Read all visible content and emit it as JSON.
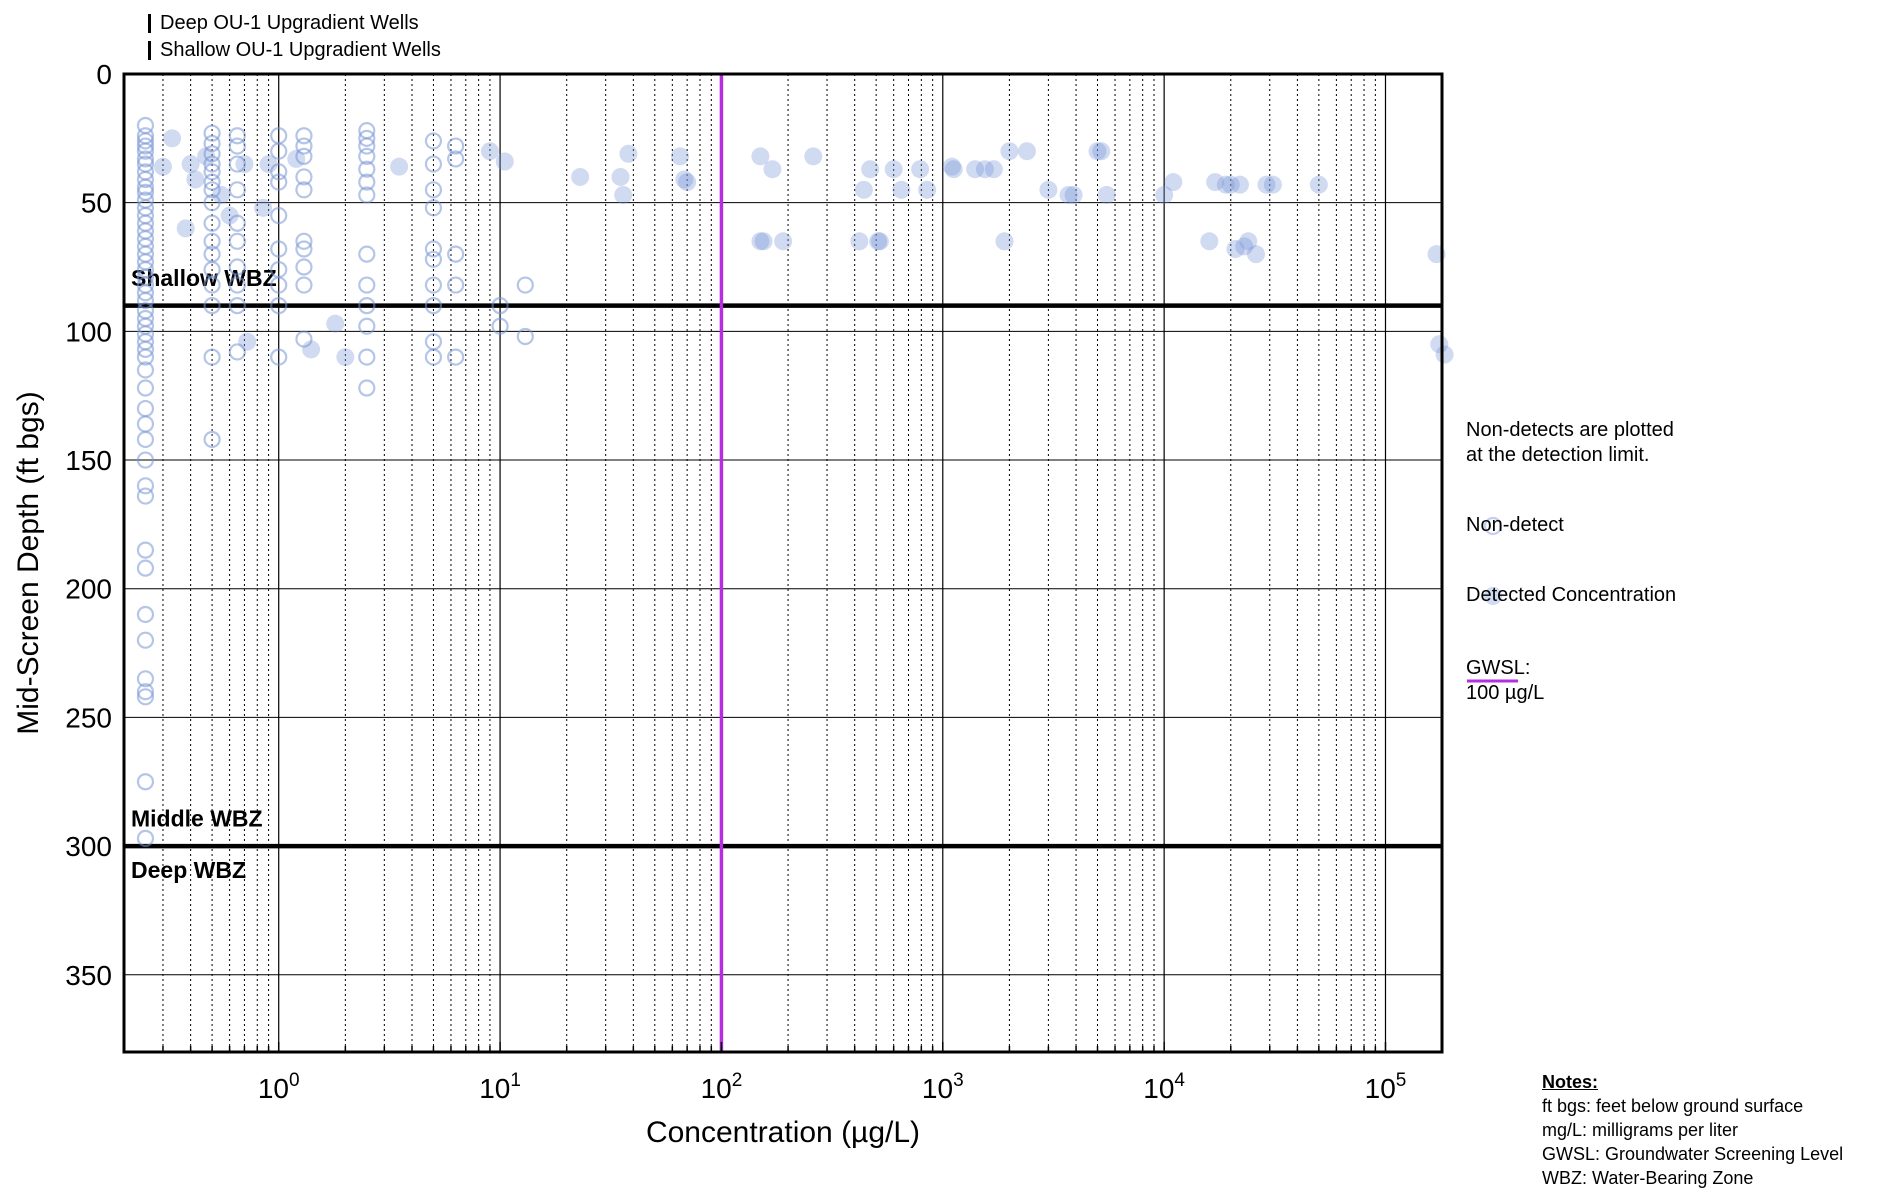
{
  "legend_top": [
    {
      "label": "Deep OU-1 Upgradient Wells"
    },
    {
      "label": "Shallow OU-1 Upgradient Wells"
    }
  ],
  "side_legend": {
    "note_line1": "Non-detects are plotted",
    "note_line2": "at the detection limit.",
    "nondetect_label": "Non-detect",
    "detected_label": "Detected Concentration",
    "gwsl_line1": "GWSL:",
    "gwsl_line2": "100 µg/L"
  },
  "notes": {
    "heading": "Notes:",
    "lines": [
      "ft bgs: feet below ground surface",
      "mg/L: milligrams per liter",
      "GWSL: Groundwater Screening Level",
      "WBZ: Water-Bearing Zone"
    ]
  },
  "colors": {
    "marker": "#7895d6",
    "gwsl": "#b52ee0",
    "grid": "#000000"
  },
  "chart_data": {
    "type": "scatter",
    "xlabel": "Concentration (µg/L)",
    "ylabel": "Mid-Screen Depth (ft bgs)",
    "xscale": "log",
    "xlim": [
      0.2,
      180000
    ],
    "ylim": [
      380,
      0
    ],
    "yticks": [
      0,
      50,
      100,
      150,
      200,
      250,
      300,
      350
    ],
    "xticks": [
      {
        "value": 1,
        "base": "10",
        "exp": "0"
      },
      {
        "value": 10,
        "base": "10",
        "exp": "1"
      },
      {
        "value": 100,
        "base": "10",
        "exp": "2"
      },
      {
        "value": 1000,
        "base": "10",
        "exp": "3"
      },
      {
        "value": 10000,
        "base": "10",
        "exp": "4"
      },
      {
        "value": 100000,
        "base": "10",
        "exp": "5"
      }
    ],
    "reference_line": {
      "x": 100,
      "label": "GWSL: 100 µg/L"
    },
    "zone_boundaries": [
      90,
      300
    ],
    "zone_labels": [
      {
        "text": "Shallow WBZ",
        "depth": 80
      },
      {
        "text": "Middle WBZ",
        "depth": 290
      },
      {
        "text": "Deep WBZ",
        "depth": 310
      }
    ],
    "series": [
      {
        "name": "Non-detect",
        "style": "open",
        "points": [
          [
            0.25,
            20
          ],
          [
            0.25,
            24
          ],
          [
            0.25,
            26
          ],
          [
            0.25,
            28
          ],
          [
            0.25,
            30
          ],
          [
            0.25,
            33
          ],
          [
            0.25,
            35
          ],
          [
            0.25,
            38
          ],
          [
            0.25,
            41
          ],
          [
            0.25,
            44
          ],
          [
            0.25,
            46
          ],
          [
            0.25,
            49
          ],
          [
            0.25,
            52
          ],
          [
            0.25,
            55
          ],
          [
            0.25,
            58
          ],
          [
            0.25,
            61
          ],
          [
            0.25,
            64
          ],
          [
            0.25,
            67
          ],
          [
            0.25,
            70
          ],
          [
            0.25,
            73
          ],
          [
            0.25,
            76
          ],
          [
            0.25,
            79
          ],
          [
            0.25,
            82
          ],
          [
            0.25,
            85
          ],
          [
            0.25,
            88
          ],
          [
            0.25,
            92
          ],
          [
            0.25,
            95
          ],
          [
            0.25,
            98
          ],
          [
            0.25,
            101
          ],
          [
            0.25,
            104
          ],
          [
            0.25,
            107
          ],
          [
            0.25,
            110
          ],
          [
            0.25,
            115
          ],
          [
            0.25,
            122
          ],
          [
            0.25,
            130
          ],
          [
            0.25,
            136
          ],
          [
            0.25,
            142
          ],
          [
            0.25,
            150
          ],
          [
            0.25,
            160
          ],
          [
            0.25,
            164
          ],
          [
            0.25,
            185
          ],
          [
            0.25,
            192
          ],
          [
            0.25,
            210
          ],
          [
            0.25,
            220
          ],
          [
            0.25,
            235
          ],
          [
            0.25,
            240
          ],
          [
            0.25,
            242
          ],
          [
            0.25,
            275
          ],
          [
            0.25,
            297
          ],
          [
            0.5,
            23
          ],
          [
            0.5,
            27
          ],
          [
            0.5,
            31
          ],
          [
            0.5,
            35
          ],
          [
            0.5,
            38
          ],
          [
            0.5,
            42
          ],
          [
            0.5,
            45
          ],
          [
            0.5,
            50
          ],
          [
            0.5,
            58
          ],
          [
            0.5,
            65
          ],
          [
            0.5,
            70
          ],
          [
            0.5,
            76
          ],
          [
            0.5,
            82
          ],
          [
            0.5,
            90
          ],
          [
            0.5,
            110
          ],
          [
            0.5,
            142
          ],
          [
            0.65,
            24
          ],
          [
            0.65,
            28
          ],
          [
            0.65,
            35
          ],
          [
            0.65,
            45
          ],
          [
            0.65,
            58
          ],
          [
            0.65,
            65
          ],
          [
            0.65,
            75
          ],
          [
            0.65,
            82
          ],
          [
            0.65,
            90
          ],
          [
            0.65,
            108
          ],
          [
            1.0,
            24
          ],
          [
            1.0,
            30
          ],
          [
            1.0,
            38
          ],
          [
            1.0,
            42
          ],
          [
            1.0,
            55
          ],
          [
            1.0,
            68
          ],
          [
            1.0,
            76
          ],
          [
            1.0,
            82
          ],
          [
            1.0,
            90
          ],
          [
            1.0,
            110
          ],
          [
            1.3,
            24
          ],
          [
            1.3,
            28
          ],
          [
            1.3,
            32
          ],
          [
            1.3,
            40
          ],
          [
            1.3,
            45
          ],
          [
            1.3,
            65
          ],
          [
            1.3,
            68
          ],
          [
            1.3,
            75
          ],
          [
            1.3,
            82
          ],
          [
            1.3,
            103
          ],
          [
            2.5,
            22
          ],
          [
            2.5,
            25
          ],
          [
            2.5,
            28
          ],
          [
            2.5,
            32
          ],
          [
            2.5,
            37
          ],
          [
            2.5,
            42
          ],
          [
            2.5,
            47
          ],
          [
            2.5,
            70
          ],
          [
            2.5,
            82
          ],
          [
            2.5,
            90
          ],
          [
            2.5,
            98
          ],
          [
            2.5,
            110
          ],
          [
            2.5,
            122
          ],
          [
            5.0,
            26
          ],
          [
            5.0,
            35
          ],
          [
            5.0,
            45
          ],
          [
            5.0,
            52
          ],
          [
            5.0,
            68
          ],
          [
            5.0,
            72
          ],
          [
            5.0,
            82
          ],
          [
            5.0,
            90
          ],
          [
            5.0,
            104
          ],
          [
            5.0,
            110
          ],
          [
            6.3,
            28
          ],
          [
            6.3,
            33
          ],
          [
            6.3,
            70
          ],
          [
            6.3,
            82
          ],
          [
            6.3,
            110
          ],
          [
            10,
            90
          ],
          [
            10,
            98
          ],
          [
            13,
            82
          ],
          [
            13,
            102
          ]
        ]
      },
      {
        "name": "Detected Concentration",
        "style": "filled",
        "points": [
          [
            0.3,
            36
          ],
          [
            0.33,
            25
          ],
          [
            0.38,
            60
          ],
          [
            0.4,
            35
          ],
          [
            0.42,
            41
          ],
          [
            0.47,
            32
          ],
          [
            0.55,
            47
          ],
          [
            0.6,
            55
          ],
          [
            0.7,
            35
          ],
          [
            0.72,
            104
          ],
          [
            0.85,
            52
          ],
          [
            0.9,
            35
          ],
          [
            1.2,
            33
          ],
          [
            1.4,
            107
          ],
          [
            1.8,
            97
          ],
          [
            2.0,
            110
          ],
          [
            3.5,
            36
          ],
          [
            9.0,
            30
          ],
          [
            10.5,
            34
          ],
          [
            23,
            40
          ],
          [
            35,
            40
          ],
          [
            36,
            47
          ],
          [
            38,
            31
          ],
          [
            65,
            32
          ],
          [
            68,
            41
          ],
          [
            70,
            42
          ],
          [
            150,
            32
          ],
          [
            150,
            65
          ],
          [
            155,
            65
          ],
          [
            170,
            37
          ],
          [
            190,
            65
          ],
          [
            260,
            32
          ],
          [
            420,
            65
          ],
          [
            440,
            45
          ],
          [
            470,
            37
          ],
          [
            510,
            65
          ],
          [
            520,
            65
          ],
          [
            600,
            37
          ],
          [
            650,
            45
          ],
          [
            790,
            37
          ],
          [
            850,
            45
          ],
          [
            1100,
            36
          ],
          [
            1120,
            37
          ],
          [
            1400,
            37
          ],
          [
            1550,
            37
          ],
          [
            1700,
            37
          ],
          [
            1900,
            65
          ],
          [
            2000,
            30
          ],
          [
            2400,
            30
          ],
          [
            3000,
            45
          ],
          [
            3700,
            47
          ],
          [
            3900,
            47
          ],
          [
            5000,
            30
          ],
          [
            5200,
            30
          ],
          [
            5500,
            47
          ],
          [
            10000,
            47
          ],
          [
            11000,
            42
          ],
          [
            16000,
            65
          ],
          [
            17000,
            42
          ],
          [
            19000,
            43
          ],
          [
            20000,
            43
          ],
          [
            21000,
            68
          ],
          [
            22000,
            43
          ],
          [
            23000,
            67
          ],
          [
            24000,
            65
          ],
          [
            26000,
            70
          ],
          [
            29000,
            43
          ],
          [
            31000,
            43
          ],
          [
            50000,
            43
          ],
          [
            170000,
            70
          ],
          [
            175000,
            105
          ],
          [
            185000,
            109
          ]
        ]
      }
    ]
  }
}
